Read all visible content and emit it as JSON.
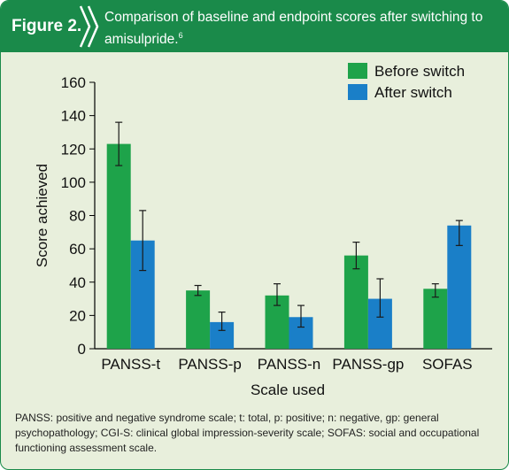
{
  "figure": {
    "label": "Figure 2.",
    "title": "Comparison of baseline and endpoint scores after switching to amisulpride.",
    "title_ref": "6",
    "footnote": "PANSS: positive and negative syndrome scale; t: total, p: positive; n: negative, gp: general psychopathology; CGI-S: clinical global impression-severity scale; SOFAS: social and occupational functioning assessment scale."
  },
  "colors": {
    "header": "#1a8a4a",
    "panel": "#e8efdc",
    "before": "#1ea34a",
    "after": "#1a7fc8"
  },
  "chart_data": {
    "type": "bar",
    "xlabel": "Scale used",
    "ylabel": "Score achieved",
    "ylim": [
      0,
      160
    ],
    "yticks": [
      0,
      20,
      40,
      60,
      80,
      100,
      120,
      140,
      160
    ],
    "categories": [
      "PANSS-t",
      "PANSS-p",
      "PANSS-n",
      "PANSS-gp",
      "SOFAS"
    ],
    "legend_position": "top-right",
    "grid": false,
    "series": [
      {
        "name": "Before switch",
        "color": "#1ea34a",
        "values": [
          123,
          35,
          32,
          56,
          36
        ],
        "error_low": [
          110,
          32,
          26,
          48,
          31
        ],
        "error_high": [
          136,
          38,
          39,
          64,
          39
        ]
      },
      {
        "name": "After switch",
        "color": "#1a7fc8",
        "values": [
          65,
          16,
          19,
          30,
          74
        ],
        "error_low": [
          47,
          11,
          13,
          19,
          62
        ],
        "error_high": [
          83,
          22,
          26,
          42,
          77
        ]
      }
    ]
  }
}
